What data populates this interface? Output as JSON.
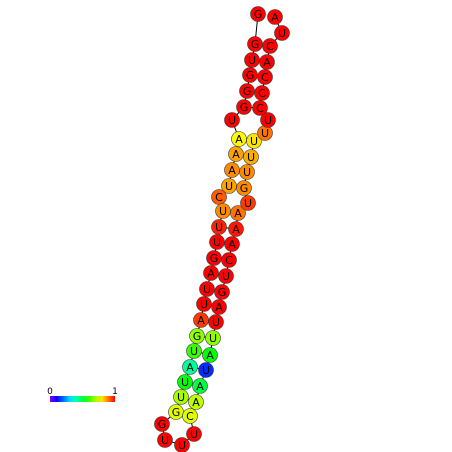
{
  "nucleotides": [
    {
      "base": "G",
      "value": 1
    },
    {
      "base": "G",
      "value": 1
    },
    {
      "base": "U",
      "value": 1
    },
    {
      "base": "G",
      "value": 1
    },
    {
      "base": "G",
      "value": 1
    },
    {
      "base": "G",
      "value": 1
    },
    {
      "base": "U",
      "value": 1
    },
    {
      "base": "A",
      "value": 0.78
    },
    {
      "base": "A",
      "value": 0.86
    },
    {
      "base": "A",
      "value": 0.88
    },
    {
      "base": "U",
      "value": 0.86
    },
    {
      "base": "C",
      "value": 0.92
    },
    {
      "base": "U",
      "value": 0.88
    },
    {
      "base": "U",
      "value": 0.97
    },
    {
      "base": "U",
      "value": 1
    },
    {
      "base": "G",
      "value": 1
    },
    {
      "base": "A",
      "value": 1
    },
    {
      "base": "U",
      "value": 1
    },
    {
      "base": "U",
      "value": 1
    },
    {
      "base": "A",
      "value": 0.95
    },
    {
      "base": "G",
      "value": 0.68
    },
    {
      "base": "U",
      "value": 0.6
    },
    {
      "base": "A",
      "value": 0.42
    },
    {
      "base": "U",
      "value": 0.55
    },
    {
      "base": "U",
      "value": 0.7
    },
    {
      "base": "G",
      "value": 0.75
    },
    {
      "base": "G",
      "value": 1
    },
    {
      "base": "U",
      "value": 1
    },
    {
      "base": "U",
      "value": 1
    },
    {
      "base": "U",
      "value": 1
    },
    {
      "base": "C",
      "value": 0.75
    },
    {
      "base": "A",
      "value": 0.72
    },
    {
      "base": "A",
      "value": 0.5
    },
    {
      "base": "U",
      "value": 0.15
    },
    {
      "base": "A",
      "value": 0.55
    },
    {
      "base": "U",
      "value": 0.68
    },
    {
      "base": "U",
      "value": 1
    },
    {
      "base": "A",
      "value": 1
    },
    {
      "base": "G",
      "value": 1
    },
    {
      "base": "U",
      "value": 1
    },
    {
      "base": "C",
      "value": 1
    },
    {
      "base": "A",
      "value": 1
    },
    {
      "base": "A",
      "value": 0.98
    },
    {
      "base": "A",
      "value": 0.9
    },
    {
      "base": "U",
      "value": 0.95
    },
    {
      "base": "G",
      "value": 0.88
    },
    {
      "base": "U",
      "value": 0.88
    },
    {
      "base": "U",
      "value": 0.85
    },
    {
      "base": "U",
      "value": 0.8
    },
    {
      "base": "U",
      "value": 0.9
    },
    {
      "base": "U",
      "value": 1
    },
    {
      "base": "C",
      "value": 1
    },
    {
      "base": "C",
      "value": 1
    },
    {
      "base": "C",
      "value": 1
    },
    {
      "base": "A",
      "value": 1
    },
    {
      "base": "C",
      "value": 1
    },
    {
      "base": "U",
      "value": 1
    },
    {
      "base": "A",
      "value": 1
    }
  ],
  "colorbar": {
    "ticks": [
      0,
      1
    ]
  }
}
